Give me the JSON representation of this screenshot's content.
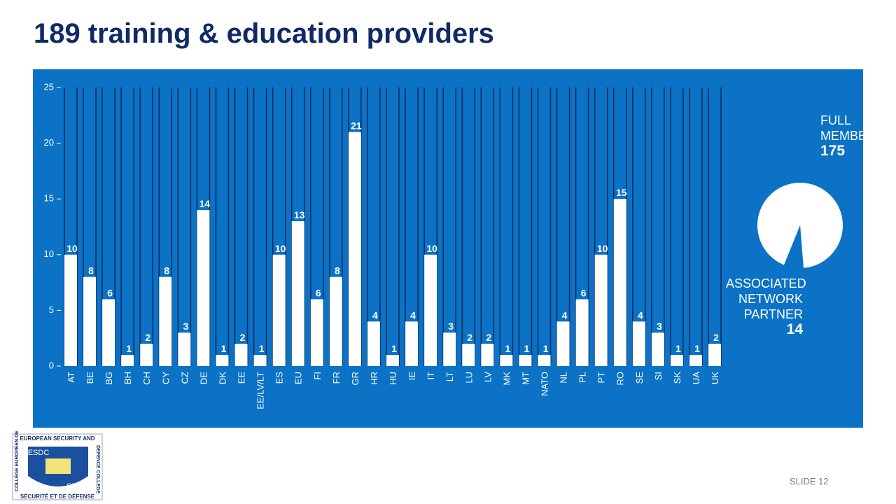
{
  "title": "189 training & education providers",
  "chart_data": [
    {
      "type": "bar",
      "categories": [
        "AT",
        "BE",
        "BG",
        "BH",
        "CH",
        "CY",
        "CZ",
        "DE",
        "DK",
        "EE",
        "EE/LV/LT",
        "ES",
        "EU",
        "FI",
        "FR",
        "GR",
        "HR",
        "HU",
        "IE",
        "IT",
        "LT",
        "LU",
        "LV",
        "MK",
        "MT",
        "NATO",
        "NL",
        "PL",
        "PT",
        "RO",
        "SE",
        "SI",
        "SK",
        "UA",
        "UK"
      ],
      "values": [
        10,
        8,
        6,
        1,
        2,
        8,
        3,
        14,
        1,
        2,
        1,
        10,
        13,
        6,
        8,
        21,
        4,
        1,
        4,
        10,
        3,
        2,
        2,
        1,
        1,
        1,
        4,
        6,
        10,
        15,
        4,
        3,
        1,
        1,
        2
      ],
      "color": "#ffffff",
      "ylim": [
        0,
        25
      ],
      "yticks": [
        0,
        5,
        10,
        15,
        20,
        25
      ]
    },
    {
      "type": "pie",
      "categories": [
        "FULL MEMBER",
        "ASSOCIATED NETWORK PARTNER"
      ],
      "values": [
        175,
        14
      ],
      "colors": [
        "#ffffff",
        "#0b72c5"
      ]
    }
  ],
  "logo": {
    "top": "EUROPEAN SECURITY AND",
    "right": "DEFENCE COLLEGE",
    "left": "COLLÈGE EUROPÉEN DE",
    "bottom": "SÉCURITÉ ET DE DÉFENSE",
    "abbr_en": "ESDC",
    "abbr_fr": "CESD"
  },
  "footer": "SLIDE 12"
}
